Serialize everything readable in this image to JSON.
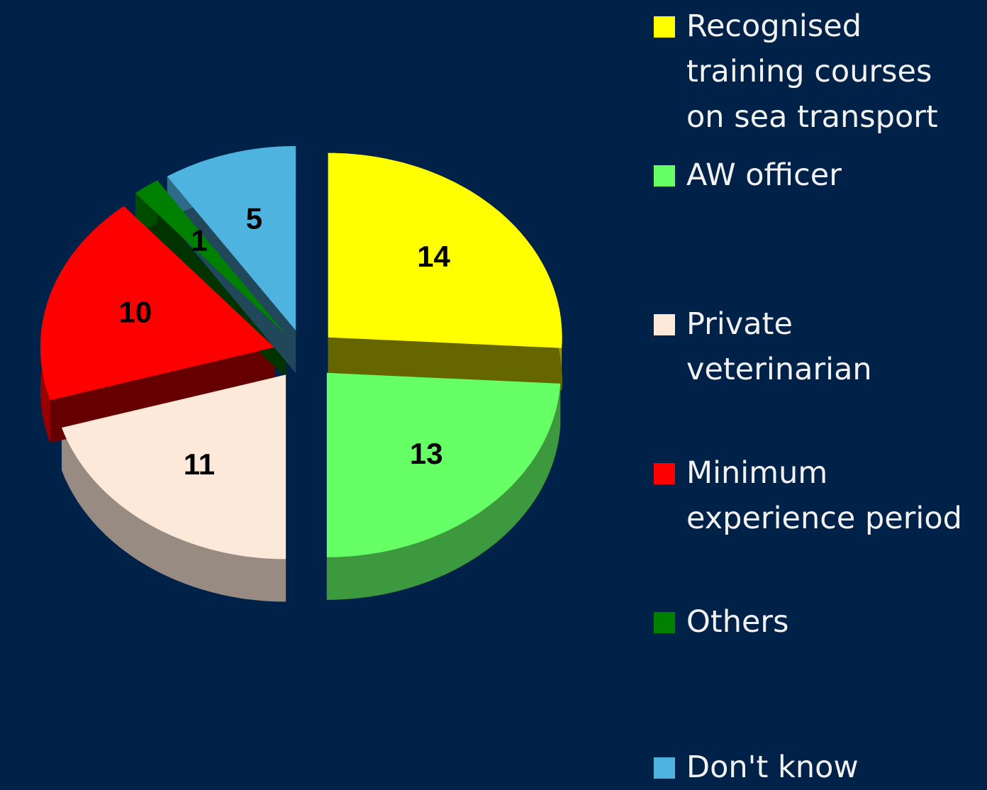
{
  "chart_data": {
    "type": "pie",
    "categories": [
      "Recognised training courses on sea transport",
      "AW officer",
      "Private veterinarian",
      "Minimum experience period",
      "Others",
      "Don't know"
    ],
    "values": [
      14,
      13,
      11,
      10,
      1,
      5
    ],
    "colors": [
      "#ffff00",
      "#66ff66",
      "#fde9d9",
      "#ff0000",
      "#008000",
      "#4fb3e0"
    ]
  }
}
